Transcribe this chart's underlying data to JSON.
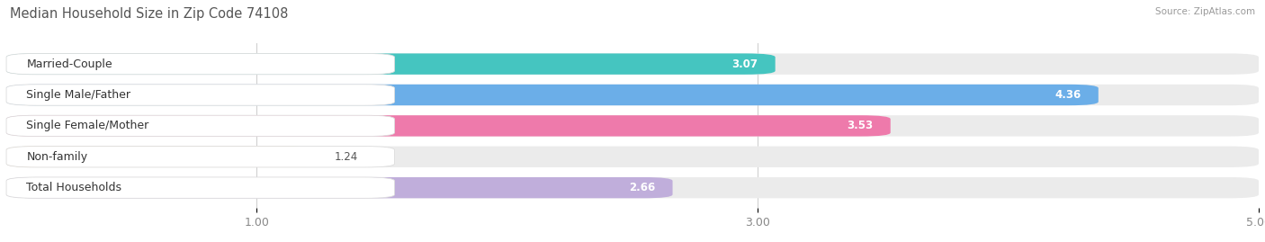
{
  "title": "Median Household Size in Zip Code 74108",
  "source": "Source: ZipAtlas.com",
  "categories": [
    "Married-Couple",
    "Single Male/Father",
    "Single Female/Mother",
    "Non-family",
    "Total Households"
  ],
  "values": [
    3.07,
    4.36,
    3.53,
    1.24,
    2.66
  ],
  "bar_colors": [
    "#45C5C0",
    "#6BAEE8",
    "#EE7AAB",
    "#F5C98A",
    "#C0AEDB"
  ],
  "xlim_min": 0.0,
  "xlim_max": 5.0,
  "xticks": [
    1.0,
    3.0,
    5.0
  ],
  "xlabel_fontsize": 9,
  "title_fontsize": 10.5,
  "value_fontsize": 8.5,
  "label_fontsize": 9,
  "bar_height": 0.68,
  "bar_gap": 0.32,
  "fig_width": 14.06,
  "fig_height": 2.69,
  "background_color": "#FFFFFF",
  "bar_bg_color": "#EBEBEB",
  "label_box_color": "#FFFFFF",
  "label_text_color": "#333333",
  "value_text_color_inside": "#FFFFFF",
  "value_text_color_outside": "#555555",
  "grid_color": "#CCCCCC",
  "title_color": "#555555",
  "source_color": "#999999"
}
